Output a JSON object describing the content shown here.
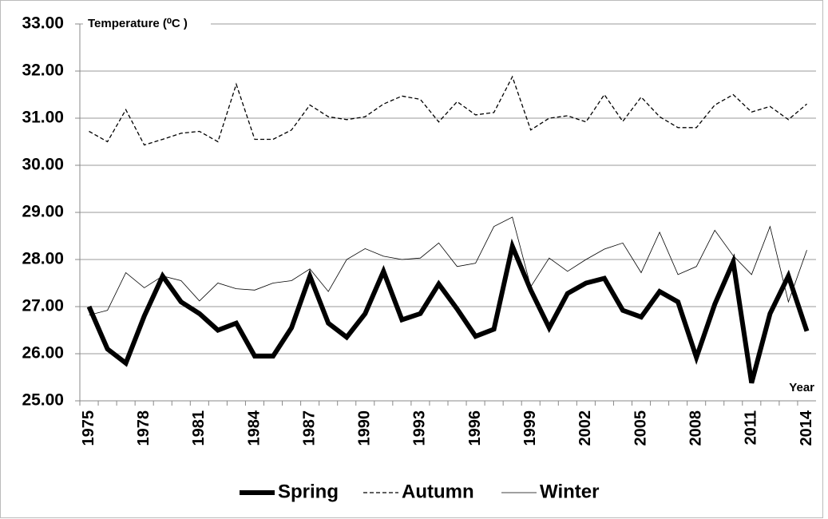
{
  "chart_data": {
    "type": "line",
    "y_label": "Temperature (⁰C )",
    "x_label": "Year",
    "categories": [
      "1975",
      null,
      null,
      "1978",
      null,
      null,
      "1981",
      null,
      null,
      "1984",
      null,
      null,
      "1987",
      null,
      null,
      "1990",
      null,
      null,
      "1993",
      null,
      null,
      "1996",
      null,
      null,
      "1999",
      null,
      null,
      "2002",
      null,
      null,
      "2005",
      null,
      null,
      "2008",
      null,
      null,
      "2011",
      null,
      null,
      "2014"
    ],
    "series": [
      {
        "name": "Spring",
        "color": "#000000",
        "width": 6,
        "dash": false,
        "values": [
          27.0,
          26.1,
          25.8,
          26.8,
          27.65,
          27.1,
          26.85,
          26.5,
          26.65,
          25.95,
          25.95,
          26.55,
          27.65,
          26.65,
          26.35,
          26.85,
          27.75,
          26.72,
          26.85,
          27.48,
          26.95,
          26.37,
          26.52,
          28.28,
          27.35,
          26.55,
          27.28,
          27.5,
          27.6,
          26.92,
          26.78,
          27.32,
          27.1,
          25.92,
          27.05,
          27.95,
          25.38,
          26.85,
          27.65,
          26.48
        ]
      },
      {
        "name": "Autumn",
        "color": "#000000",
        "width": 1.3,
        "dash": true,
        "values": [
          30.72,
          30.5,
          31.18,
          30.43,
          30.55,
          30.68,
          30.72,
          30.5,
          31.72,
          30.55,
          30.55,
          30.75,
          31.28,
          31.03,
          30.97,
          31.03,
          31.3,
          31.47,
          31.4,
          30.92,
          31.35,
          31.07,
          31.12,
          31.88,
          30.75,
          31.0,
          31.05,
          30.92,
          31.5,
          30.93,
          31.45,
          31.03,
          30.8,
          30.8,
          31.28,
          31.5,
          31.13,
          31.25,
          30.97,
          31.3
        ]
      },
      {
        "name": "Winter",
        "color": "#000000",
        "width": 0.8,
        "dash": false,
        "values": [
          26.82,
          26.92,
          27.72,
          27.4,
          27.65,
          27.55,
          27.12,
          27.5,
          27.38,
          27.35,
          27.5,
          27.55,
          27.8,
          27.32,
          28.0,
          28.23,
          28.07,
          28.0,
          28.03,
          28.35,
          27.85,
          27.92,
          28.7,
          28.9,
          27.42,
          28.03,
          27.75,
          28.0,
          28.22,
          28.35,
          27.72,
          28.58,
          27.68,
          27.85,
          28.62,
          28.08,
          27.68,
          28.7,
          27.1,
          28.2
        ]
      }
    ],
    "ylim": [
      25,
      33
    ],
    "yticks": [
      {
        "value": 25,
        "label": "25.00"
      },
      {
        "value": 26,
        "label": "26.00"
      },
      {
        "value": 27,
        "label": "27.00"
      },
      {
        "value": 28,
        "label": "28.00"
      },
      {
        "value": 29,
        "label": "29.00"
      },
      {
        "value": 30,
        "label": "30.00"
      },
      {
        "value": 31,
        "label": "31.00"
      },
      {
        "value": 32,
        "label": "32.00"
      },
      {
        "value": 33,
        "label": "33.00"
      }
    ],
    "grid": true,
    "legend": "bottom"
  }
}
